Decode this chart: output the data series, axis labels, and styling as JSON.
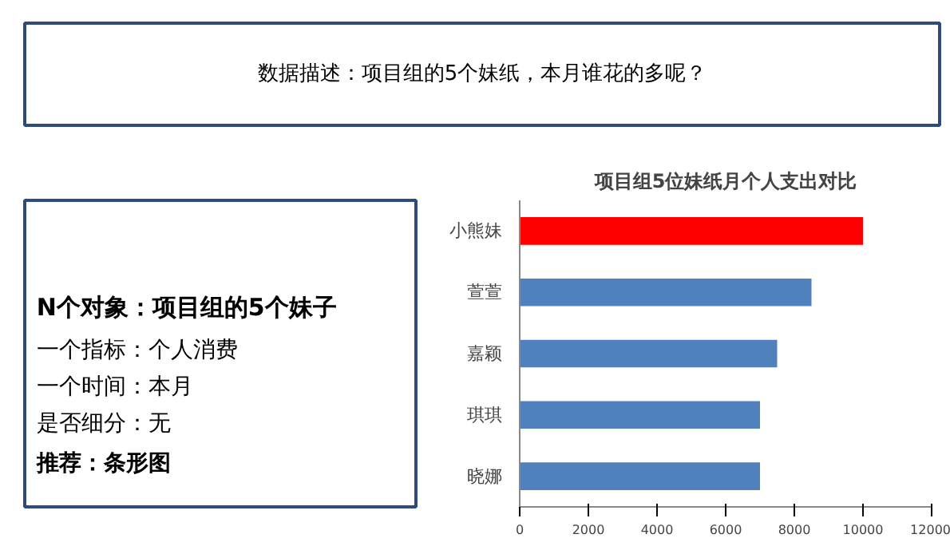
{
  "chart_data": {
    "type": "bar",
    "orientation": "horizontal",
    "title": "项目组5位妹纸月个人支出对比",
    "categories": [
      "小熊妹",
      "萱萱",
      "嘉颖",
      "琪琪",
      "晓娜"
    ],
    "values": [
      10000,
      8500,
      7500,
      7000,
      7000
    ],
    "colors": [
      "#ff0000",
      "#4f81bd",
      "#4f81bd",
      "#4f81bd",
      "#4f81bd"
    ],
    "xlim": [
      0,
      12000
    ],
    "xticks": [
      0,
      2000,
      4000,
      6000,
      8000,
      10000,
      12000
    ],
    "grid": false,
    "annotations": [
      "数据描述：项目组的5个妹纸，本月谁花的多呢？",
      "N个对象：项目组的5个妹子",
      "一个指标：个人消费",
      "一个时间：本月",
      "是否细分：无",
      "推荐：条形图"
    ]
  }
}
